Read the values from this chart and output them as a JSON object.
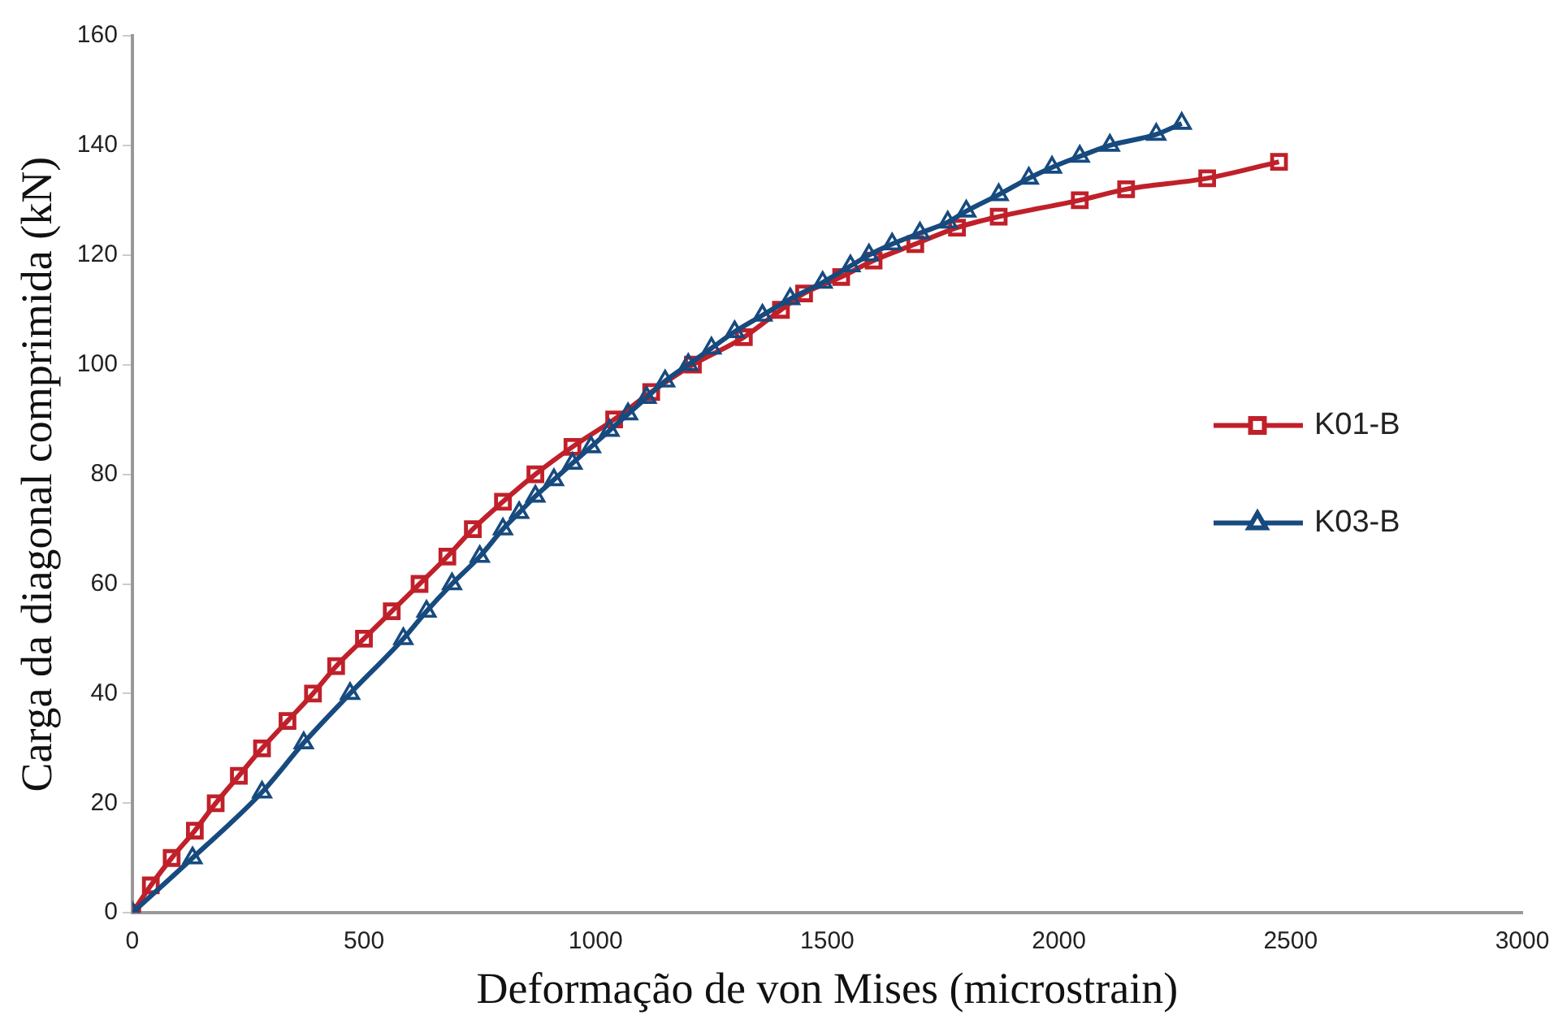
{
  "chart_data": {
    "type": "line",
    "xlabel": "Deformação de von Mises (microstrain)",
    "ylabel": "Carga da diagonal comprimida (kN)",
    "xlim": [
      0,
      3000
    ],
    "xticks": [
      0,
      500,
      1000,
      1500,
      2000,
      2500,
      3000
    ],
    "ylim": [
      0,
      160
    ],
    "yticks": [
      0,
      20,
      40,
      60,
      80,
      100,
      120,
      140,
      160
    ],
    "grid": false,
    "legend": "right",
    "line_style": "solid",
    "series": [
      {
        "name": "K01-B",
        "color": "#c0202a",
        "marker": "square",
        "x": [
          0,
          40,
          85,
          135,
          180,
          230,
          280,
          335,
          390,
          440,
          500,
          560,
          620,
          680,
          735,
          800,
          870,
          950,
          1040,
          1120,
          1210,
          1320,
          1400,
          1450,
          1530,
          1600,
          1690,
          1780,
          1870,
          2045,
          2145,
          2320,
          2475
        ],
        "values": [
          0,
          5,
          10,
          15,
          20,
          25,
          30,
          35,
          40,
          45,
          50,
          55,
          60,
          65,
          70,
          75,
          80,
          85,
          90,
          95,
          100,
          105,
          110,
          113,
          116,
          119,
          122,
          125,
          127,
          130,
          132,
          134,
          137
        ]
      },
      {
        "name": "K03-B",
        "color": "#174a7e",
        "marker": "triangle",
        "x": [
          0,
          130,
          280,
          370,
          470,
          585,
          635,
          690,
          750,
          800,
          835,
          870,
          910,
          950,
          990,
          1030,
          1070,
          1110,
          1150,
          1200,
          1250,
          1300,
          1360,
          1420,
          1490,
          1550,
          1590,
          1640,
          1700,
          1760,
          1800,
          1870,
          1935,
          1985,
          2045,
          2110,
          2210,
          2265
        ],
        "values": [
          0,
          10,
          22,
          31,
          40,
          50,
          55,
          60,
          65,
          70,
          73,
          76,
          79,
          82,
          85,
          88,
          91,
          94,
          97,
          100,
          103,
          106,
          109,
          112,
          115,
          118,
          120,
          122,
          124,
          126,
          128,
          131,
          134,
          136,
          138,
          140,
          142,
          144
        ]
      }
    ]
  }
}
